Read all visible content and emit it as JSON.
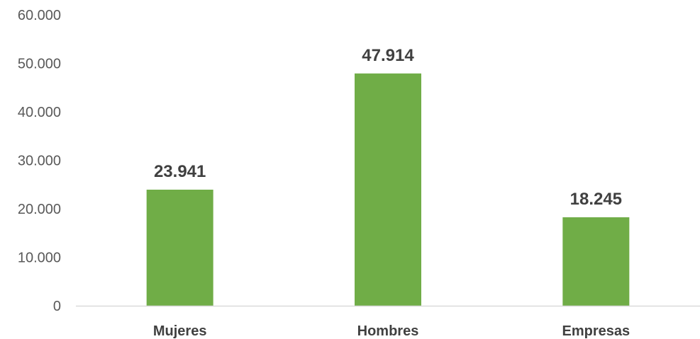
{
  "chart_data": {
    "type": "bar",
    "title": "",
    "xlabel": "",
    "ylabel": "",
    "categories": [
      "Mujeres",
      "Hombres",
      "Empresas"
    ],
    "values": [
      23941,
      47914,
      18245
    ],
    "value_labels": [
      "23.941",
      "47.914",
      "18.245"
    ],
    "ylim": [
      0,
      60000
    ],
    "yticks": [
      0,
      10000,
      20000,
      30000,
      40000,
      50000,
      60000
    ],
    "ytick_labels": [
      "0",
      "10.000",
      "20.000",
      "30.000",
      "40.000",
      "50.000",
      "60.000"
    ],
    "grid": false,
    "legend": "none",
    "bar_color": "#70AD47",
    "axis_color": "#D9D9D9"
  }
}
